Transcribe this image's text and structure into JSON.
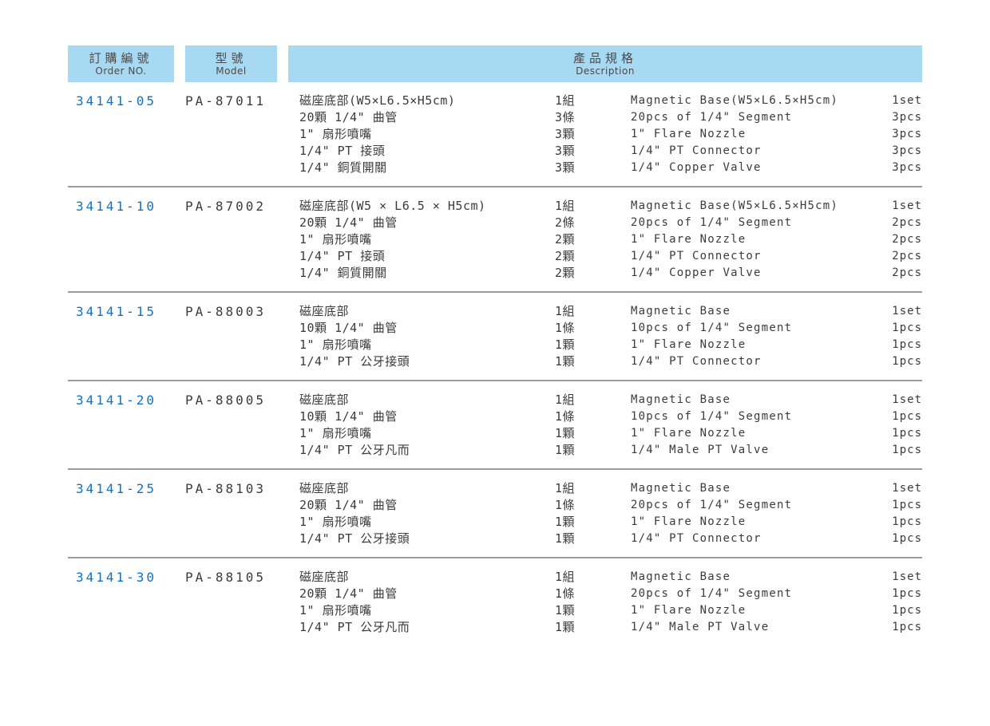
{
  "colors": {
    "header_bg": "#a8d9f2",
    "header_text": "#4a4a4a",
    "order_number_blue": "#1271c5",
    "body_text": "#3b3b3b",
    "separator_gray": "#9b9b9b",
    "page_bg": "#ffffff"
  },
  "header": {
    "order_col": {
      "zh": "訂購編號",
      "en": "Order NO."
    },
    "model_col": {
      "zh": "型號",
      "en": "Model"
    },
    "desc_col": {
      "zh": "產品規格",
      "en": "Description"
    }
  },
  "rows": [
    {
      "order_no": "34141-05",
      "model": "PA-87011",
      "items": [
        {
          "zh": "磁座底部(W5×L6.5×H5cm)",
          "zh_qty": "1組",
          "en": "Magnetic Base(W5×L6.5×H5cm)",
          "en_qty": "1set"
        },
        {
          "zh": "20顆 1/4\" 曲管",
          "zh_qty": "3條",
          "en": "20pcs of 1/4\" Segment",
          "en_qty": "3pcs"
        },
        {
          "zh": "1\" 扇形噴嘴",
          "zh_qty": "3顆",
          "en": "1\" Flare Nozzle",
          "en_qty": "3pcs"
        },
        {
          "zh": "1/4\" PT 接頭",
          "zh_qty": "3顆",
          "en": "1/4\" PT Connector",
          "en_qty": "3pcs"
        },
        {
          "zh": "1/4\" 銅質開關",
          "zh_qty": "3顆",
          "en": "1/4\" Copper Valve",
          "en_qty": "3pcs"
        }
      ]
    },
    {
      "order_no": "34141-10",
      "model": "PA-87002",
      "items": [
        {
          "zh": "磁座底部(W5 × L6.5 × H5cm)",
          "zh_qty": "1組",
          "en": "Magnetic Base(W5×L6.5×H5cm)",
          "en_qty": "1set"
        },
        {
          "zh": "20顆 1/4\" 曲管",
          "zh_qty": "2條",
          "en": "20pcs of 1/4\" Segment",
          "en_qty": "2pcs"
        },
        {
          "zh": "1\" 扇形噴嘴",
          "zh_qty": "2顆",
          "en": "1\" Flare Nozzle",
          "en_qty": "2pcs"
        },
        {
          "zh": "1/4\" PT 接頭",
          "zh_qty": "2顆",
          "en": "1/4\" PT Connector",
          "en_qty": "2pcs"
        },
        {
          "zh": "1/4\" 銅質開關",
          "zh_qty": "2顆",
          "en": "1/4\" Copper Valve",
          "en_qty": "2pcs"
        }
      ]
    },
    {
      "order_no": "34141-15",
      "model": "PA-88003",
      "items": [
        {
          "zh": "磁座底部",
          "zh_qty": "1組",
          "en": "Magnetic Base",
          "en_qty": "1set"
        },
        {
          "zh": "10顆 1/4\" 曲管",
          "zh_qty": "1條",
          "en": "10pcs of 1/4\" Segment",
          "en_qty": "1pcs"
        },
        {
          "zh": "1\" 扇形噴嘴",
          "zh_qty": "1顆",
          "en": "1\" Flare Nozzle",
          "en_qty": "1pcs"
        },
        {
          "zh": "1/4\" PT 公牙接頭",
          "zh_qty": "1顆",
          "en": "1/4\" PT Connector",
          "en_qty": "1pcs"
        }
      ]
    },
    {
      "order_no": "34141-20",
      "model": "PA-88005",
      "items": [
        {
          "zh": "磁座底部",
          "zh_qty": "1組",
          "en": "Magnetic Base",
          "en_qty": "1set"
        },
        {
          "zh": "10顆 1/4\" 曲管",
          "zh_qty": "1條",
          "en": "10pcs of 1/4\" Segment",
          "en_qty": "1pcs"
        },
        {
          "zh": "1\" 扇形噴嘴",
          "zh_qty": "1顆",
          "en": "1\" Flare Nozzle",
          "en_qty": "1pcs"
        },
        {
          "zh": "1/4\" PT 公牙凡而",
          "zh_qty": "1顆",
          "en": "1/4\" Male PT Valve",
          "en_qty": "1pcs"
        }
      ]
    },
    {
      "order_no": "34141-25",
      "model": "PA-88103",
      "items": [
        {
          "zh": "磁座底部",
          "zh_qty": "1組",
          "en": "Magnetic Base",
          "en_qty": "1set"
        },
        {
          "zh": "20顆 1/4\" 曲管",
          "zh_qty": "1條",
          "en": "20pcs of 1/4\" Segment",
          "en_qty": "1pcs"
        },
        {
          "zh": "1\" 扇形噴嘴",
          "zh_qty": "1顆",
          "en": "1\" Flare Nozzle",
          "en_qty": "1pcs"
        },
        {
          "zh": "1/4\" PT 公牙接頭",
          "zh_qty": "1顆",
          "en": "1/4\" PT Connector",
          "en_qty": "1pcs"
        }
      ]
    },
    {
      "order_no": "34141-30",
      "model": "PA-88105",
      "items": [
        {
          "zh": "磁座底部",
          "zh_qty": "1組",
          "en": "Magnetic Base",
          "en_qty": "1set"
        },
        {
          "zh": "20顆 1/4\" 曲管",
          "zh_qty": "1條",
          "en": "20pcs of 1/4\" Segment",
          "en_qty": "1pcs"
        },
        {
          "zh": "1\" 扇形噴嘴",
          "zh_qty": "1顆",
          "en": "1\" Flare Nozzle",
          "en_qty": "1pcs"
        },
        {
          "zh": "1/4\" PT 公牙凡而",
          "zh_qty": "1顆",
          "en": "1/4\" Male PT Valve",
          "en_qty": "1pcs"
        }
      ]
    }
  ]
}
